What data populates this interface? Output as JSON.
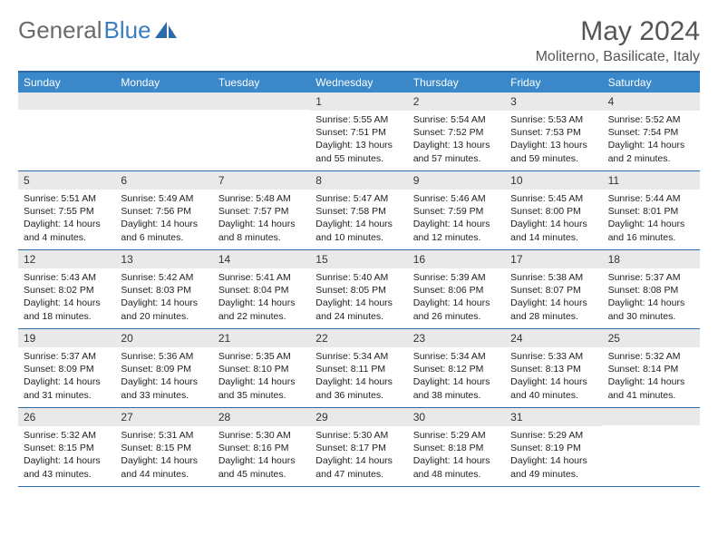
{
  "logo": {
    "text1": "General",
    "text2": "Blue"
  },
  "title": "May 2024",
  "location": "Moliterno, Basilicate, Italy",
  "colors": {
    "header_bg": "#3a87c9",
    "header_text": "#ffffff",
    "border": "#2d6aa8",
    "daynum_bg": "#e9e9e9",
    "logo_gray": "#6b6b6b",
    "logo_blue": "#3b7fbf"
  },
  "layout": {
    "columns": 7,
    "weeks": 5
  },
  "weekdays": [
    "Sunday",
    "Monday",
    "Tuesday",
    "Wednesday",
    "Thursday",
    "Friday",
    "Saturday"
  ],
  "cells": [
    {
      "day": "",
      "sunrise": "",
      "sunset": "",
      "daylight": ""
    },
    {
      "day": "",
      "sunrise": "",
      "sunset": "",
      "daylight": ""
    },
    {
      "day": "",
      "sunrise": "",
      "sunset": "",
      "daylight": ""
    },
    {
      "day": "1",
      "sunrise": "Sunrise: 5:55 AM",
      "sunset": "Sunset: 7:51 PM",
      "daylight": "Daylight: 13 hours and 55 minutes."
    },
    {
      "day": "2",
      "sunrise": "Sunrise: 5:54 AM",
      "sunset": "Sunset: 7:52 PM",
      "daylight": "Daylight: 13 hours and 57 minutes."
    },
    {
      "day": "3",
      "sunrise": "Sunrise: 5:53 AM",
      "sunset": "Sunset: 7:53 PM",
      "daylight": "Daylight: 13 hours and 59 minutes."
    },
    {
      "day": "4",
      "sunrise": "Sunrise: 5:52 AM",
      "sunset": "Sunset: 7:54 PM",
      "daylight": "Daylight: 14 hours and 2 minutes."
    },
    {
      "day": "5",
      "sunrise": "Sunrise: 5:51 AM",
      "sunset": "Sunset: 7:55 PM",
      "daylight": "Daylight: 14 hours and 4 minutes."
    },
    {
      "day": "6",
      "sunrise": "Sunrise: 5:49 AM",
      "sunset": "Sunset: 7:56 PM",
      "daylight": "Daylight: 14 hours and 6 minutes."
    },
    {
      "day": "7",
      "sunrise": "Sunrise: 5:48 AM",
      "sunset": "Sunset: 7:57 PM",
      "daylight": "Daylight: 14 hours and 8 minutes."
    },
    {
      "day": "8",
      "sunrise": "Sunrise: 5:47 AM",
      "sunset": "Sunset: 7:58 PM",
      "daylight": "Daylight: 14 hours and 10 minutes."
    },
    {
      "day": "9",
      "sunrise": "Sunrise: 5:46 AM",
      "sunset": "Sunset: 7:59 PM",
      "daylight": "Daylight: 14 hours and 12 minutes."
    },
    {
      "day": "10",
      "sunrise": "Sunrise: 5:45 AM",
      "sunset": "Sunset: 8:00 PM",
      "daylight": "Daylight: 14 hours and 14 minutes."
    },
    {
      "day": "11",
      "sunrise": "Sunrise: 5:44 AM",
      "sunset": "Sunset: 8:01 PM",
      "daylight": "Daylight: 14 hours and 16 minutes."
    },
    {
      "day": "12",
      "sunrise": "Sunrise: 5:43 AM",
      "sunset": "Sunset: 8:02 PM",
      "daylight": "Daylight: 14 hours and 18 minutes."
    },
    {
      "day": "13",
      "sunrise": "Sunrise: 5:42 AM",
      "sunset": "Sunset: 8:03 PM",
      "daylight": "Daylight: 14 hours and 20 minutes."
    },
    {
      "day": "14",
      "sunrise": "Sunrise: 5:41 AM",
      "sunset": "Sunset: 8:04 PM",
      "daylight": "Daylight: 14 hours and 22 minutes."
    },
    {
      "day": "15",
      "sunrise": "Sunrise: 5:40 AM",
      "sunset": "Sunset: 8:05 PM",
      "daylight": "Daylight: 14 hours and 24 minutes."
    },
    {
      "day": "16",
      "sunrise": "Sunrise: 5:39 AM",
      "sunset": "Sunset: 8:06 PM",
      "daylight": "Daylight: 14 hours and 26 minutes."
    },
    {
      "day": "17",
      "sunrise": "Sunrise: 5:38 AM",
      "sunset": "Sunset: 8:07 PM",
      "daylight": "Daylight: 14 hours and 28 minutes."
    },
    {
      "day": "18",
      "sunrise": "Sunrise: 5:37 AM",
      "sunset": "Sunset: 8:08 PM",
      "daylight": "Daylight: 14 hours and 30 minutes."
    },
    {
      "day": "19",
      "sunrise": "Sunrise: 5:37 AM",
      "sunset": "Sunset: 8:09 PM",
      "daylight": "Daylight: 14 hours and 31 minutes."
    },
    {
      "day": "20",
      "sunrise": "Sunrise: 5:36 AM",
      "sunset": "Sunset: 8:09 PM",
      "daylight": "Daylight: 14 hours and 33 minutes."
    },
    {
      "day": "21",
      "sunrise": "Sunrise: 5:35 AM",
      "sunset": "Sunset: 8:10 PM",
      "daylight": "Daylight: 14 hours and 35 minutes."
    },
    {
      "day": "22",
      "sunrise": "Sunrise: 5:34 AM",
      "sunset": "Sunset: 8:11 PM",
      "daylight": "Daylight: 14 hours and 36 minutes."
    },
    {
      "day": "23",
      "sunrise": "Sunrise: 5:34 AM",
      "sunset": "Sunset: 8:12 PM",
      "daylight": "Daylight: 14 hours and 38 minutes."
    },
    {
      "day": "24",
      "sunrise": "Sunrise: 5:33 AM",
      "sunset": "Sunset: 8:13 PM",
      "daylight": "Daylight: 14 hours and 40 minutes."
    },
    {
      "day": "25",
      "sunrise": "Sunrise: 5:32 AM",
      "sunset": "Sunset: 8:14 PM",
      "daylight": "Daylight: 14 hours and 41 minutes."
    },
    {
      "day": "26",
      "sunrise": "Sunrise: 5:32 AM",
      "sunset": "Sunset: 8:15 PM",
      "daylight": "Daylight: 14 hours and 43 minutes."
    },
    {
      "day": "27",
      "sunrise": "Sunrise: 5:31 AM",
      "sunset": "Sunset: 8:15 PM",
      "daylight": "Daylight: 14 hours and 44 minutes."
    },
    {
      "day": "28",
      "sunrise": "Sunrise: 5:30 AM",
      "sunset": "Sunset: 8:16 PM",
      "daylight": "Daylight: 14 hours and 45 minutes."
    },
    {
      "day": "29",
      "sunrise": "Sunrise: 5:30 AM",
      "sunset": "Sunset: 8:17 PM",
      "daylight": "Daylight: 14 hours and 47 minutes."
    },
    {
      "day": "30",
      "sunrise": "Sunrise: 5:29 AM",
      "sunset": "Sunset: 8:18 PM",
      "daylight": "Daylight: 14 hours and 48 minutes."
    },
    {
      "day": "31",
      "sunrise": "Sunrise: 5:29 AM",
      "sunset": "Sunset: 8:19 PM",
      "daylight": "Daylight: 14 hours and 49 minutes."
    },
    {
      "day": "",
      "sunrise": "",
      "sunset": "",
      "daylight": ""
    }
  ]
}
